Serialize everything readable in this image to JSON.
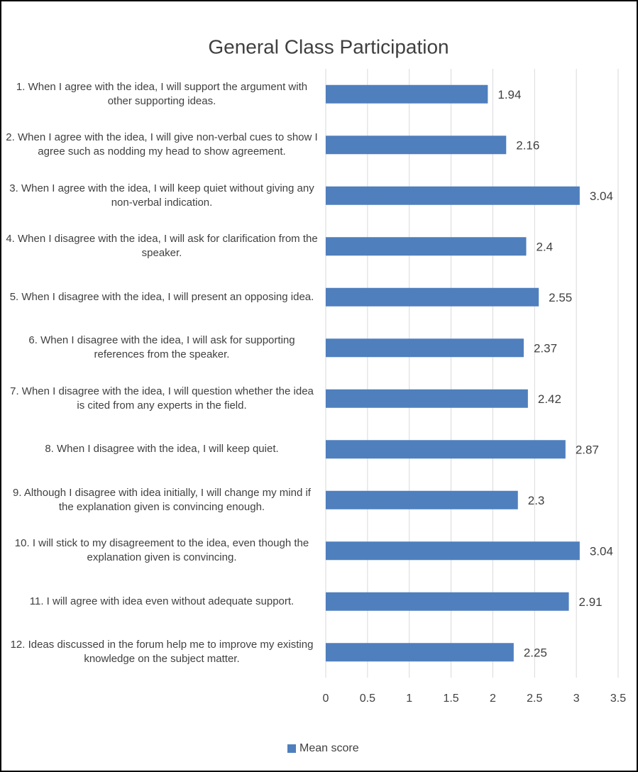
{
  "chart_data": {
    "type": "barh",
    "title": "General Class Participation",
    "categories": [
      "1. When I agree with the idea, I will support the argument with other supporting ideas.",
      "2. When I agree with the idea, I will give non-verbal cues to show I agree such as nodding my head to show agreement.",
      "3. When I agree with the idea, I will keep quiet without giving any non-verbal indication.",
      "4. When I disagree with the idea, I will ask for clarification from the speaker.",
      "5. When I disagree with the idea, I will present an opposing idea.",
      "6. When I disagree with the idea, I will ask for supporting references from the speaker.",
      "7. When I disagree with the idea, I will question whether the idea is cited from any experts in the field.",
      "8. When I disagree with the idea, I will keep quiet.",
      "9. Although I disagree with idea initially, I will change my mind if the explanation given is convincing enough.",
      "10. I will stick to my disagreement to the idea, even though the explanation given is convincing.",
      "11. I will agree with idea even without adequate support.",
      "12. Ideas discussed in the forum help me to improve my existing knowledge on the subject matter."
    ],
    "series": [
      {
        "name": "Mean score",
        "color": "#4f7fbd",
        "values": [
          1.94,
          2.16,
          3.04,
          2.4,
          2.55,
          2.37,
          2.42,
          2.87,
          2.3,
          3.04,
          2.91,
          2.25
        ]
      }
    ],
    "xlim": [
      0,
      3.5
    ],
    "xticks": [
      0,
      0.5,
      1,
      1.5,
      2,
      2.5,
      3,
      3.5
    ],
    "grid": true,
    "legend": "bottom"
  }
}
